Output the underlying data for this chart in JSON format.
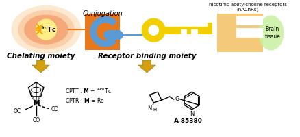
{
  "bg_color": "#ffffff",
  "conjugation_label": "Conjugation",
  "chelating_label": "Chelating moiety",
  "receptor_label": "Receptor binding moiety",
  "nachr_label": "nicotinic acetylcholine receptors\n(nAChRs)",
  "brain_label": "Brain\ntissue",
  "a85380_label": "A-85380",
  "orange_color": "#E8781A",
  "yellow_color": "#F2D000",
  "blue_color": "#5B9BD5",
  "light_orange_bg": "#F5C97A",
  "green_color": "#C8F0A0",
  "arrow_color": "#D4A010",
  "glow1": "#FDE8D0",
  "glow2": "#FBCFAA",
  "glow3": "#F5A878",
  "ball_color": "#FFEE88",
  "lightning_color": "#FFAA00"
}
